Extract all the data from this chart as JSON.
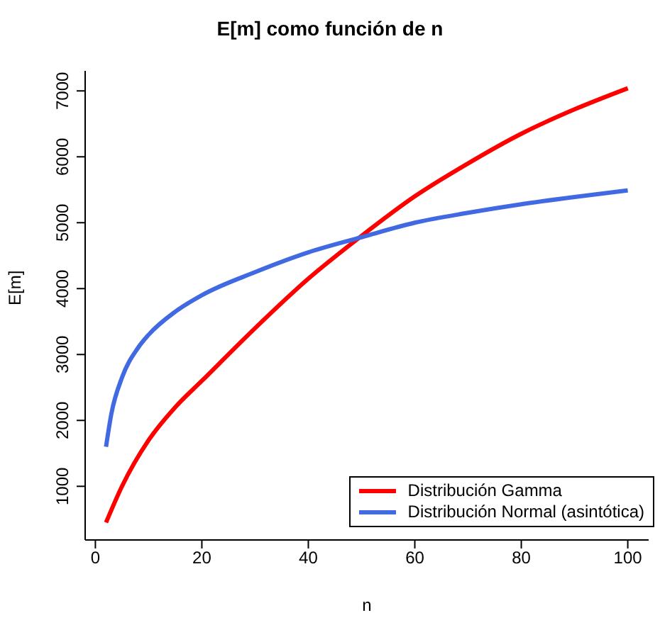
{
  "chart_data": {
    "type": "line",
    "title": "E[m] como función de n",
    "xlabel": "n",
    "ylabel": "E[m]",
    "xlim": [
      -1.92,
      103.92
    ],
    "xticks": [
      0,
      20,
      40,
      60,
      80,
      100
    ],
    "ylim": [
      186,
      7304
    ],
    "yticks": [
      1000,
      2000,
      3000,
      4000,
      5000,
      6000,
      7000
    ],
    "grid": false,
    "legend": "bottom right",
    "marker": "none",
    "line_style": "solid",
    "series": [
      {
        "name": "Distribución Gamma",
        "color": "#ff0000",
        "x": [
          2,
          5,
          10,
          15,
          20,
          30,
          40,
          50,
          60,
          70,
          80,
          90,
          100
        ],
        "values": [
          450,
          1000,
          1700,
          2200,
          2600,
          3400,
          4150,
          4800,
          5400,
          5900,
          6350,
          6720,
          7040
        ]
      },
      {
        "name": "Distribución Normal (asintótica)",
        "color": "#4169e1",
        "x": [
          2,
          3,
          5,
          8,
          10,
          15,
          20,
          30,
          40,
          50,
          60,
          70,
          80,
          90,
          100
        ],
        "values": [
          1600,
          2100,
          2650,
          3100,
          3300,
          3650,
          3900,
          4250,
          4550,
          4780,
          5000,
          5150,
          5280,
          5390,
          5490
        ]
      }
    ]
  }
}
